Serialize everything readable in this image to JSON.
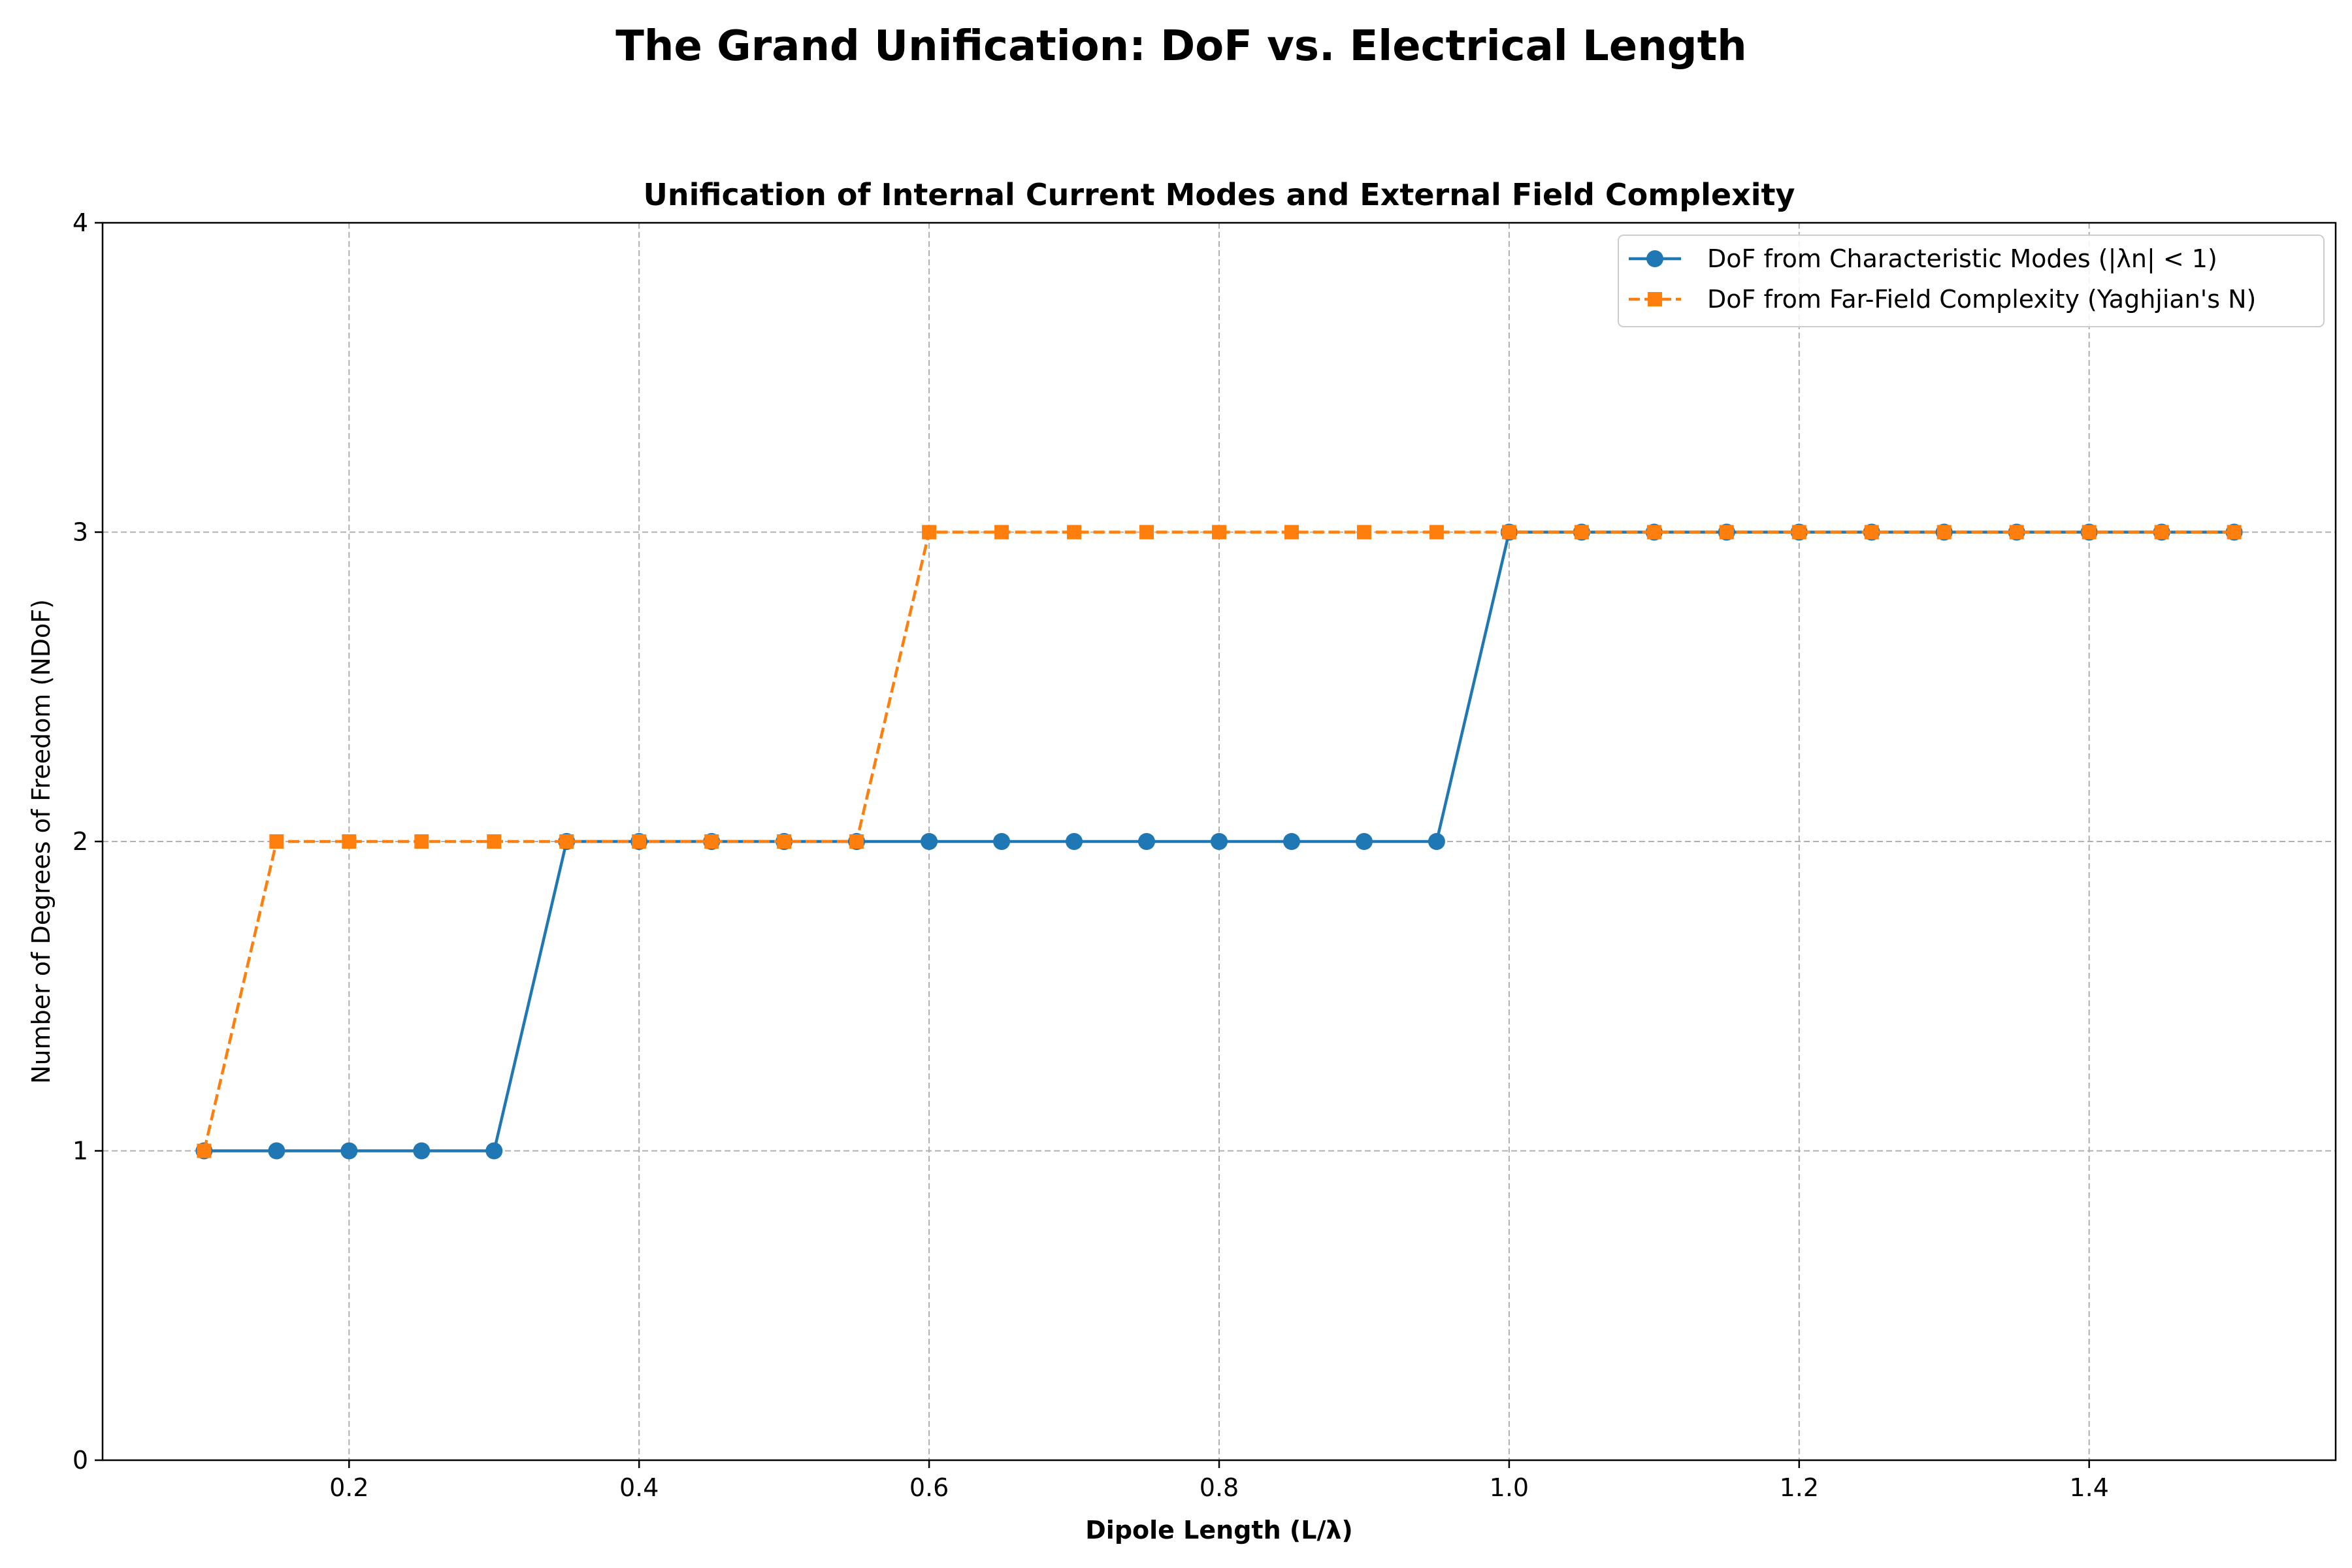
{
  "figure": {
    "suptitle": "The Grand Unification: DoF vs. Electrical Length"
  },
  "chart_data": {
    "type": "line",
    "title": "Unification of Internal Current Modes and External Field Complexity",
    "xlabel": "Dipole Length (L/λ)",
    "ylabel": "Number of Degrees of Freedom (NDoF)",
    "xlim": [
      0.03,
      1.57
    ],
    "ylim": [
      0,
      4
    ],
    "xticks": [
      0.2,
      0.4,
      0.6,
      0.8,
      1.0,
      1.2,
      1.4
    ],
    "xtick_labels": [
      "0.2",
      "0.4",
      "0.6",
      "0.8",
      "1.0",
      "1.2",
      "1.4"
    ],
    "yticks": [
      0,
      1,
      2,
      3,
      4
    ],
    "ytick_labels": [
      "0",
      "1",
      "2",
      "3",
      "4"
    ],
    "grid": true,
    "legend_position": "top-right",
    "x": [
      0.1,
      0.15,
      0.2,
      0.25,
      0.3,
      0.35,
      0.4,
      0.45,
      0.5,
      0.55,
      0.6,
      0.65,
      0.7,
      0.75,
      0.8,
      0.85,
      0.9,
      0.95,
      1.0,
      1.05,
      1.1,
      1.15,
      1.2,
      1.25,
      1.3,
      1.35,
      1.4,
      1.45,
      1.5
    ],
    "series": [
      {
        "name": "DoF from Characteristic Modes (|λn| < 1)",
        "color": "#1f77b4",
        "marker": "circle",
        "linestyle": "solid",
        "values": [
          1,
          1,
          1,
          1,
          1,
          2,
          2,
          2,
          2,
          2,
          2,
          2,
          2,
          2,
          2,
          2,
          2,
          2,
          3,
          3,
          3,
          3,
          3,
          3,
          3,
          3,
          3,
          3,
          3
        ]
      },
      {
        "name": "DoF from Far-Field Complexity (Yaghjian's N)",
        "color": "#ff7f0e",
        "marker": "square",
        "linestyle": "dashed",
        "values": [
          1,
          2,
          2,
          2,
          2,
          2,
          2,
          2,
          2,
          2,
          3,
          3,
          3,
          3,
          3,
          3,
          3,
          3,
          3,
          3,
          3,
          3,
          3,
          3,
          3,
          3,
          3,
          3,
          3
        ]
      }
    ]
  }
}
